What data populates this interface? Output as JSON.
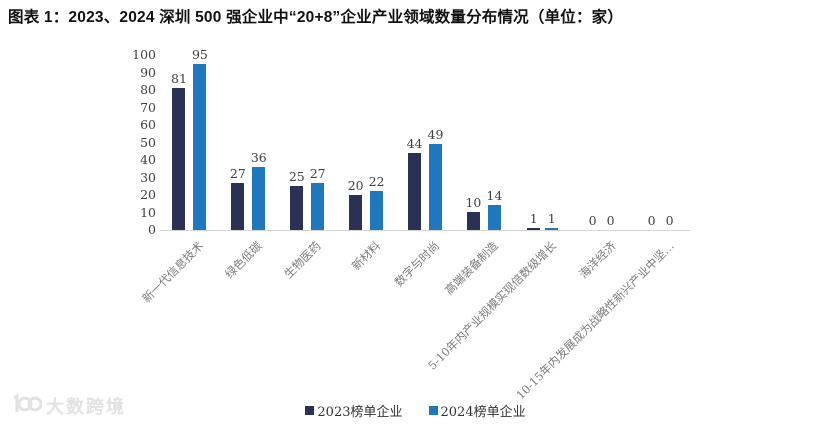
{
  "title": "图表 1：2023、2024 深圳 500 强企业中“20+8”企业产业领域数量分布情况（单位：家）",
  "watermark": {
    "icon": "infinity-100-logo",
    "text": "大数跨境"
  },
  "colors": {
    "series_2023": "#2b3154",
    "series_2024": "#1f78be",
    "axis_line": "#d6d6d6",
    "tick_text": "#3f3f46",
    "value_label_text": "#404040",
    "x_label_text": "#7a7a7a",
    "title_text": "#111111",
    "watermark": "#e2e2e2"
  },
  "chart_data": {
    "type": "bar",
    "title": "图表 1：2023、2024 深圳 500 强企业中“20+8”企业产业领域数量分布情况（单位：家）",
    "unit": "家",
    "categories": [
      "新一代信息技术",
      "绿色低碳",
      "生物医药",
      "新材料",
      "数字与时尚",
      "高端装备制造",
      "5-10年内产业规模实现倍数级增长",
      "海洋经济",
      "10-15年内发展成为战略性新兴产业中坚…"
    ],
    "series": [
      {
        "name": "2023榜单企业",
        "color": "#2b3154",
        "values": [
          81,
          27,
          25,
          20,
          44,
          10,
          1,
          0,
          0
        ]
      },
      {
        "name": "2024榜单企业",
        "color": "#1f78be",
        "values": [
          95,
          36,
          27,
          22,
          49,
          14,
          1,
          0,
          0
        ]
      }
    ],
    "xlabel": "",
    "ylabel": "",
    "ylim": [
      0,
      100
    ],
    "yticks": [
      0,
      10,
      20,
      30,
      40,
      50,
      60,
      70,
      80,
      90,
      100
    ],
    "grid": false,
    "value_labels": true,
    "legend_position": "bottom",
    "x_label_rotation_deg": 45
  }
}
